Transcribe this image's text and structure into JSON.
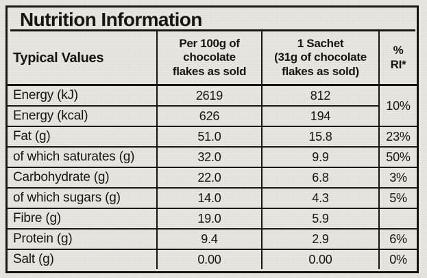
{
  "title": "Nutrition Information",
  "colors": {
    "paper_background": "#e6e5df",
    "ink": "#16150f"
  },
  "table": {
    "headers": {
      "typical_values": "Typical Values",
      "per_100g": "Per 100g of\nchocolate\nflakes as sold",
      "sachet": "1 Sachet\n(31g of chocolate\nflakes as sold)",
      "ri": "%\nRI*"
    },
    "rows": [
      {
        "label": "Energy (kJ)",
        "per100g": "2619",
        "sachet": "812",
        "ri": "10%"
      },
      {
        "label": "Energy (kcal)",
        "per100g": "626",
        "sachet": "194"
      },
      {
        "label": "Fat (g)",
        "per100g": "51.0",
        "sachet": "15.8",
        "ri": "23%"
      },
      {
        "label": "of which saturates (g)",
        "per100g": "32.0",
        "sachet": "9.9",
        "ri": "50%"
      },
      {
        "label": "Carbohydrate (g)",
        "per100g": "22.0",
        "sachet": "6.8",
        "ri": "3%"
      },
      {
        "label": "of which sugars (g)",
        "per100g": "14.0",
        "sachet": "4.3",
        "ri": "5%"
      },
      {
        "label": "Fibre (g)",
        "per100g": "19.0",
        "sachet": "5.9",
        "ri": ""
      },
      {
        "label": "Protein (g)",
        "per100g": "9.4",
        "sachet": "2.9",
        "ri": "6%"
      },
      {
        "label": "Salt (g)",
        "per100g": "0.00",
        "sachet": "0.00",
        "ri": "0%"
      }
    ]
  }
}
